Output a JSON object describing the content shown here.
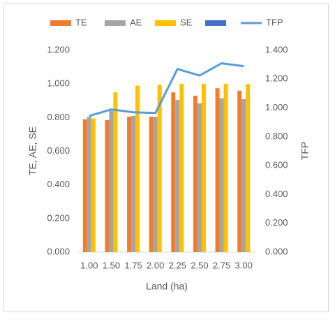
{
  "chart_data": {
    "type": "bar_line",
    "categories": [
      "1.00",
      "1.50",
      "1.75",
      "2.00",
      "2.25",
      "2.50",
      "2.75",
      "3.00"
    ],
    "series": [
      {
        "name": "TE",
        "color": "#ED7D31",
        "values": [
          0.79,
          0.785,
          0.805,
          0.805,
          0.95,
          0.93,
          0.975,
          0.96
        ]
      },
      {
        "name": "AE",
        "color": "#A5A5A5",
        "values": [
          0.805,
          0.84,
          0.81,
          0.805,
          0.905,
          0.885,
          0.915,
          0.91
        ]
      },
      {
        "name": "SE",
        "color": "#FFC000",
        "values": [
          0.795,
          0.95,
          0.99,
          0.995,
          1.0,
          1.0,
          1.0,
          1.0
        ]
      },
      {
        "name": "TFP",
        "color": "#5B9BD5",
        "axis": "y2",
        "values": [
          0.945,
          0.99,
          0.97,
          0.965,
          1.27,
          1.225,
          1.31,
          1.29
        ]
      }
    ],
    "xlabel": "Land (ha)",
    "ylabel": "TE, AE, SE",
    "y2label": "TFP",
    "ylim": [
      0,
      1.2
    ],
    "yticks": [
      {
        "value": 0,
        "label": "0.000"
      },
      {
        "value": 0.2,
        "label": "0.200"
      },
      {
        "value": 0.4,
        "label": "0.400"
      },
      {
        "value": 0.6,
        "label": "0.600"
      },
      {
        "value": 0.8,
        "label": "0.800"
      },
      {
        "value": 1.0,
        "label": "1.000"
      },
      {
        "value": 1.2,
        "label": "1.200"
      }
    ],
    "y2lim": [
      0,
      1.4
    ],
    "y2ticks": [
      {
        "value": 0,
        "label": "0.000"
      },
      {
        "value": 0.2,
        "label": "0.200"
      },
      {
        "value": 0.4,
        "label": "0.400"
      },
      {
        "value": 0.6,
        "label": "0.600"
      },
      {
        "value": 0.8,
        "label": "0.800"
      },
      {
        "value": 1.0,
        "label": "1.000"
      },
      {
        "value": 1.2,
        "label": "1.200"
      },
      {
        "value": 1.4,
        "label": "1.400"
      }
    ],
    "legend": "top"
  }
}
